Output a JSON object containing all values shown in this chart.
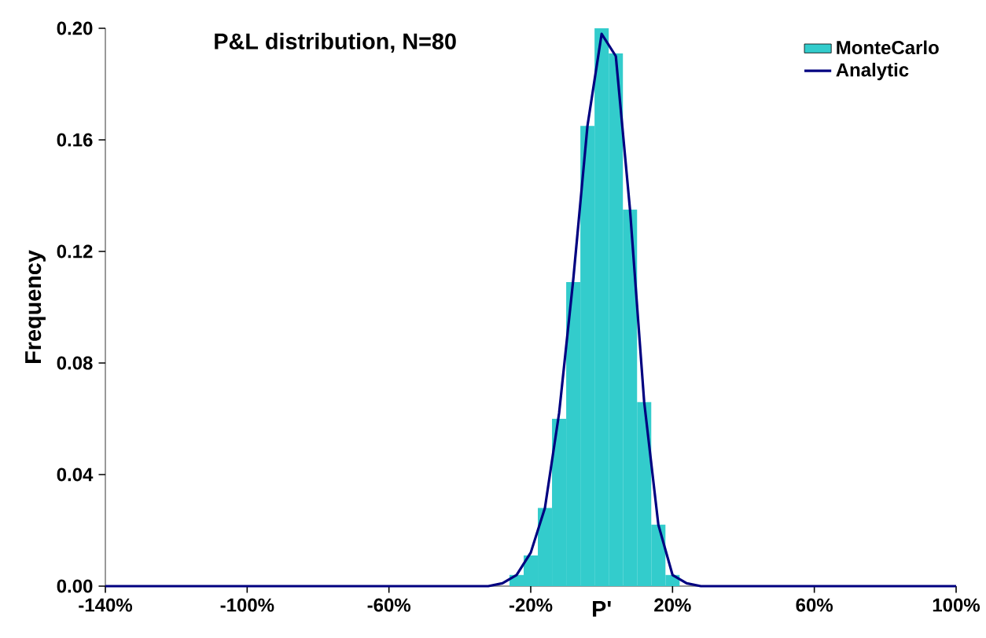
{
  "chart_data": {
    "type": "histogram",
    "title": "P&L distribution, N=80",
    "xlabel": "P'",
    "ylabel": "Frequency",
    "bins": [
      -26,
      -22,
      -18,
      -14,
      -10,
      -6,
      -2,
      2,
      6,
      10,
      14,
      18,
      22
    ],
    "series": [
      {
        "name": "MonteCarlo",
        "color": "#33cccc",
        "values": [
          0.004,
          0.011,
          0.028,
          0.06,
          0.109,
          0.165,
          0.2,
          0.191,
          0.135,
          0.066,
          0.022,
          0.004
        ]
      },
      {
        "name": "Analytic",
        "type": "line",
        "color": "#000080",
        "x": [
          -140,
          -100,
          -60,
          -40,
          -32,
          -28,
          -24,
          -20,
          -16,
          -12,
          -8,
          -4,
          0,
          4,
          8,
          12,
          16,
          20,
          24,
          28,
          40,
          60,
          100
        ],
        "values": [
          0,
          0,
          0,
          0,
          0,
          0.001,
          0.004,
          0.012,
          0.028,
          0.062,
          0.11,
          0.165,
          0.198,
          0.19,
          0.135,
          0.066,
          0.022,
          0.004,
          0.001,
          0,
          0,
          0,
          0
        ]
      }
    ],
    "xlim": [
      -140,
      100
    ],
    "ylim": [
      0,
      0.2
    ],
    "xticks": [
      {
        "value": -140,
        "label": "-140%"
      },
      {
        "value": -100,
        "label": "-100%"
      },
      {
        "value": -60,
        "label": "-60%"
      },
      {
        "value": -20,
        "label": "-20%"
      },
      {
        "value": 20,
        "label": "20%"
      },
      {
        "value": 60,
        "label": "60%"
      },
      {
        "value": 100,
        "label": "100%"
      }
    ],
    "yticks": [
      {
        "value": 0,
        "label": "0.00"
      },
      {
        "value": 0.04,
        "label": "0.04"
      },
      {
        "value": 0.08,
        "label": "0.08"
      },
      {
        "value": 0.12,
        "label": "0.12"
      },
      {
        "value": 0.16,
        "label": "0.16"
      },
      {
        "value": 0.2,
        "label": "0.20"
      }
    ],
    "legend": "top right",
    "grid": false
  }
}
